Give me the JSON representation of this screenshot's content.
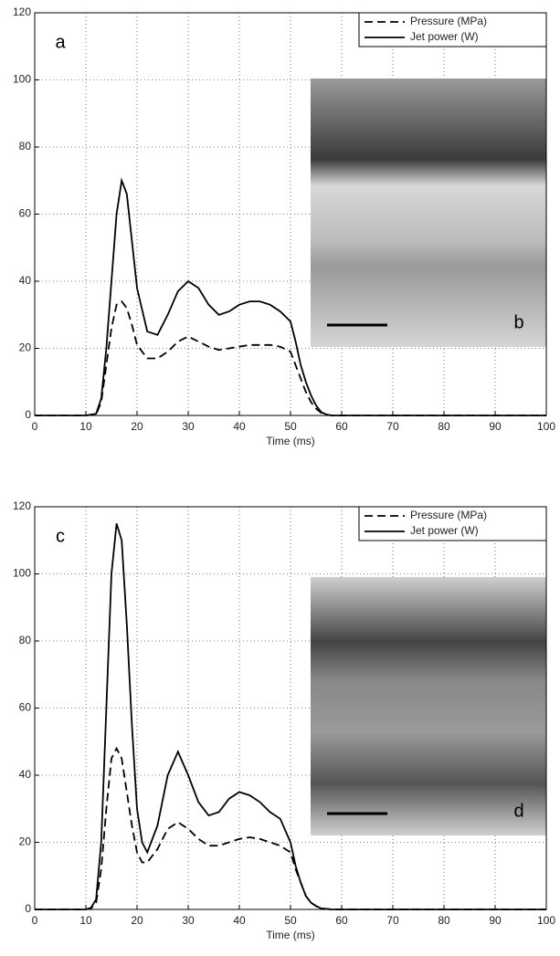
{
  "chart_data": [
    {
      "type": "line",
      "panel_label": "a",
      "inset_label": "b",
      "xlabel": "Time (ms)",
      "x": [
        0,
        5,
        10,
        12,
        13,
        14,
        15,
        16,
        17,
        18,
        19,
        20,
        22,
        24,
        26,
        28,
        30,
        32,
        34,
        36,
        38,
        40,
        42,
        44,
        46,
        48,
        50,
        51,
        52,
        53,
        54,
        55,
        56,
        57,
        58,
        60,
        100
      ],
      "series": [
        {
          "name": "Pressure (MPa)",
          "color": "#000000",
          "style": "dashed",
          "values": [
            0,
            0,
            0,
            0.3,
            4,
            15,
            26,
            33,
            34,
            32,
            27,
            21,
            17,
            17,
            19,
            22,
            23.5,
            22,
            20.5,
            19.5,
            20,
            20.5,
            21,
            21,
            21,
            20.5,
            19,
            15,
            11,
            7,
            4,
            2,
            0.8,
            0.2,
            0,
            0,
            0
          ]
        },
        {
          "name": "Jet power (W)",
          "color": "#000000",
          "style": "solid",
          "values": [
            0,
            0,
            0,
            0.5,
            5,
            20,
            40,
            60,
            70,
            66,
            52,
            38,
            25,
            24,
            30,
            37,
            40,
            38,
            33,
            30,
            31,
            33,
            34,
            34,
            33,
            31,
            28,
            22,
            15,
            10,
            6,
            3,
            1,
            0.3,
            0,
            0,
            0
          ]
        }
      ],
      "xlim": [
        0,
        100
      ],
      "ylim": [
        0,
        120
      ],
      "xticks": [
        0,
        10,
        20,
        30,
        40,
        50,
        60,
        70,
        80,
        90,
        100
      ],
      "yticks": [
        0,
        20,
        40,
        60,
        80,
        100,
        120
      ],
      "grid": true,
      "legend": "upper right"
    },
    {
      "type": "line",
      "panel_label": "c",
      "inset_label": "d",
      "xlabel": "Time (ms)",
      "x": [
        0,
        5,
        10,
        11,
        12,
        13,
        14,
        15,
        16,
        17,
        18,
        19,
        20,
        21,
        22,
        24,
        26,
        28,
        30,
        32,
        34,
        36,
        38,
        40,
        42,
        44,
        46,
        48,
        50,
        51,
        52,
        53,
        54,
        55,
        56,
        58,
        100
      ],
      "series": [
        {
          "name": "Pressure (MPa)",
          "color": "#000000",
          "style": "dashed",
          "values": [
            0,
            0,
            0,
            0.3,
            2,
            12,
            30,
            45,
            48,
            45,
            35,
            25,
            17,
            14,
            14,
            18,
            24,
            26,
            24,
            21,
            19,
            19,
            20,
            21,
            21.5,
            21,
            20,
            19,
            17,
            12,
            8,
            4,
            2,
            1,
            0.3,
            0,
            0
          ]
        },
        {
          "name": "Jet power (W)",
          "color": "#000000",
          "style": "solid",
          "values": [
            0,
            0,
            0,
            0.5,
            3,
            20,
            60,
            100,
            115,
            110,
            85,
            55,
            30,
            20,
            17,
            25,
            40,
            47,
            40,
            32,
            28,
            29,
            33,
            35,
            34,
            32,
            29,
            27,
            20,
            13,
            8,
            4,
            2,
            1,
            0.3,
            0,
            0
          ]
        }
      ],
      "xlim": [
        0,
        100
      ],
      "ylim": [
        0,
        120
      ],
      "xticks": [
        0,
        10,
        20,
        30,
        40,
        50,
        60,
        70,
        80,
        90,
        100
      ],
      "yticks": [
        0,
        20,
        40,
        60,
        80,
        100,
        120
      ],
      "grid": true,
      "legend": "upper right"
    }
  ]
}
